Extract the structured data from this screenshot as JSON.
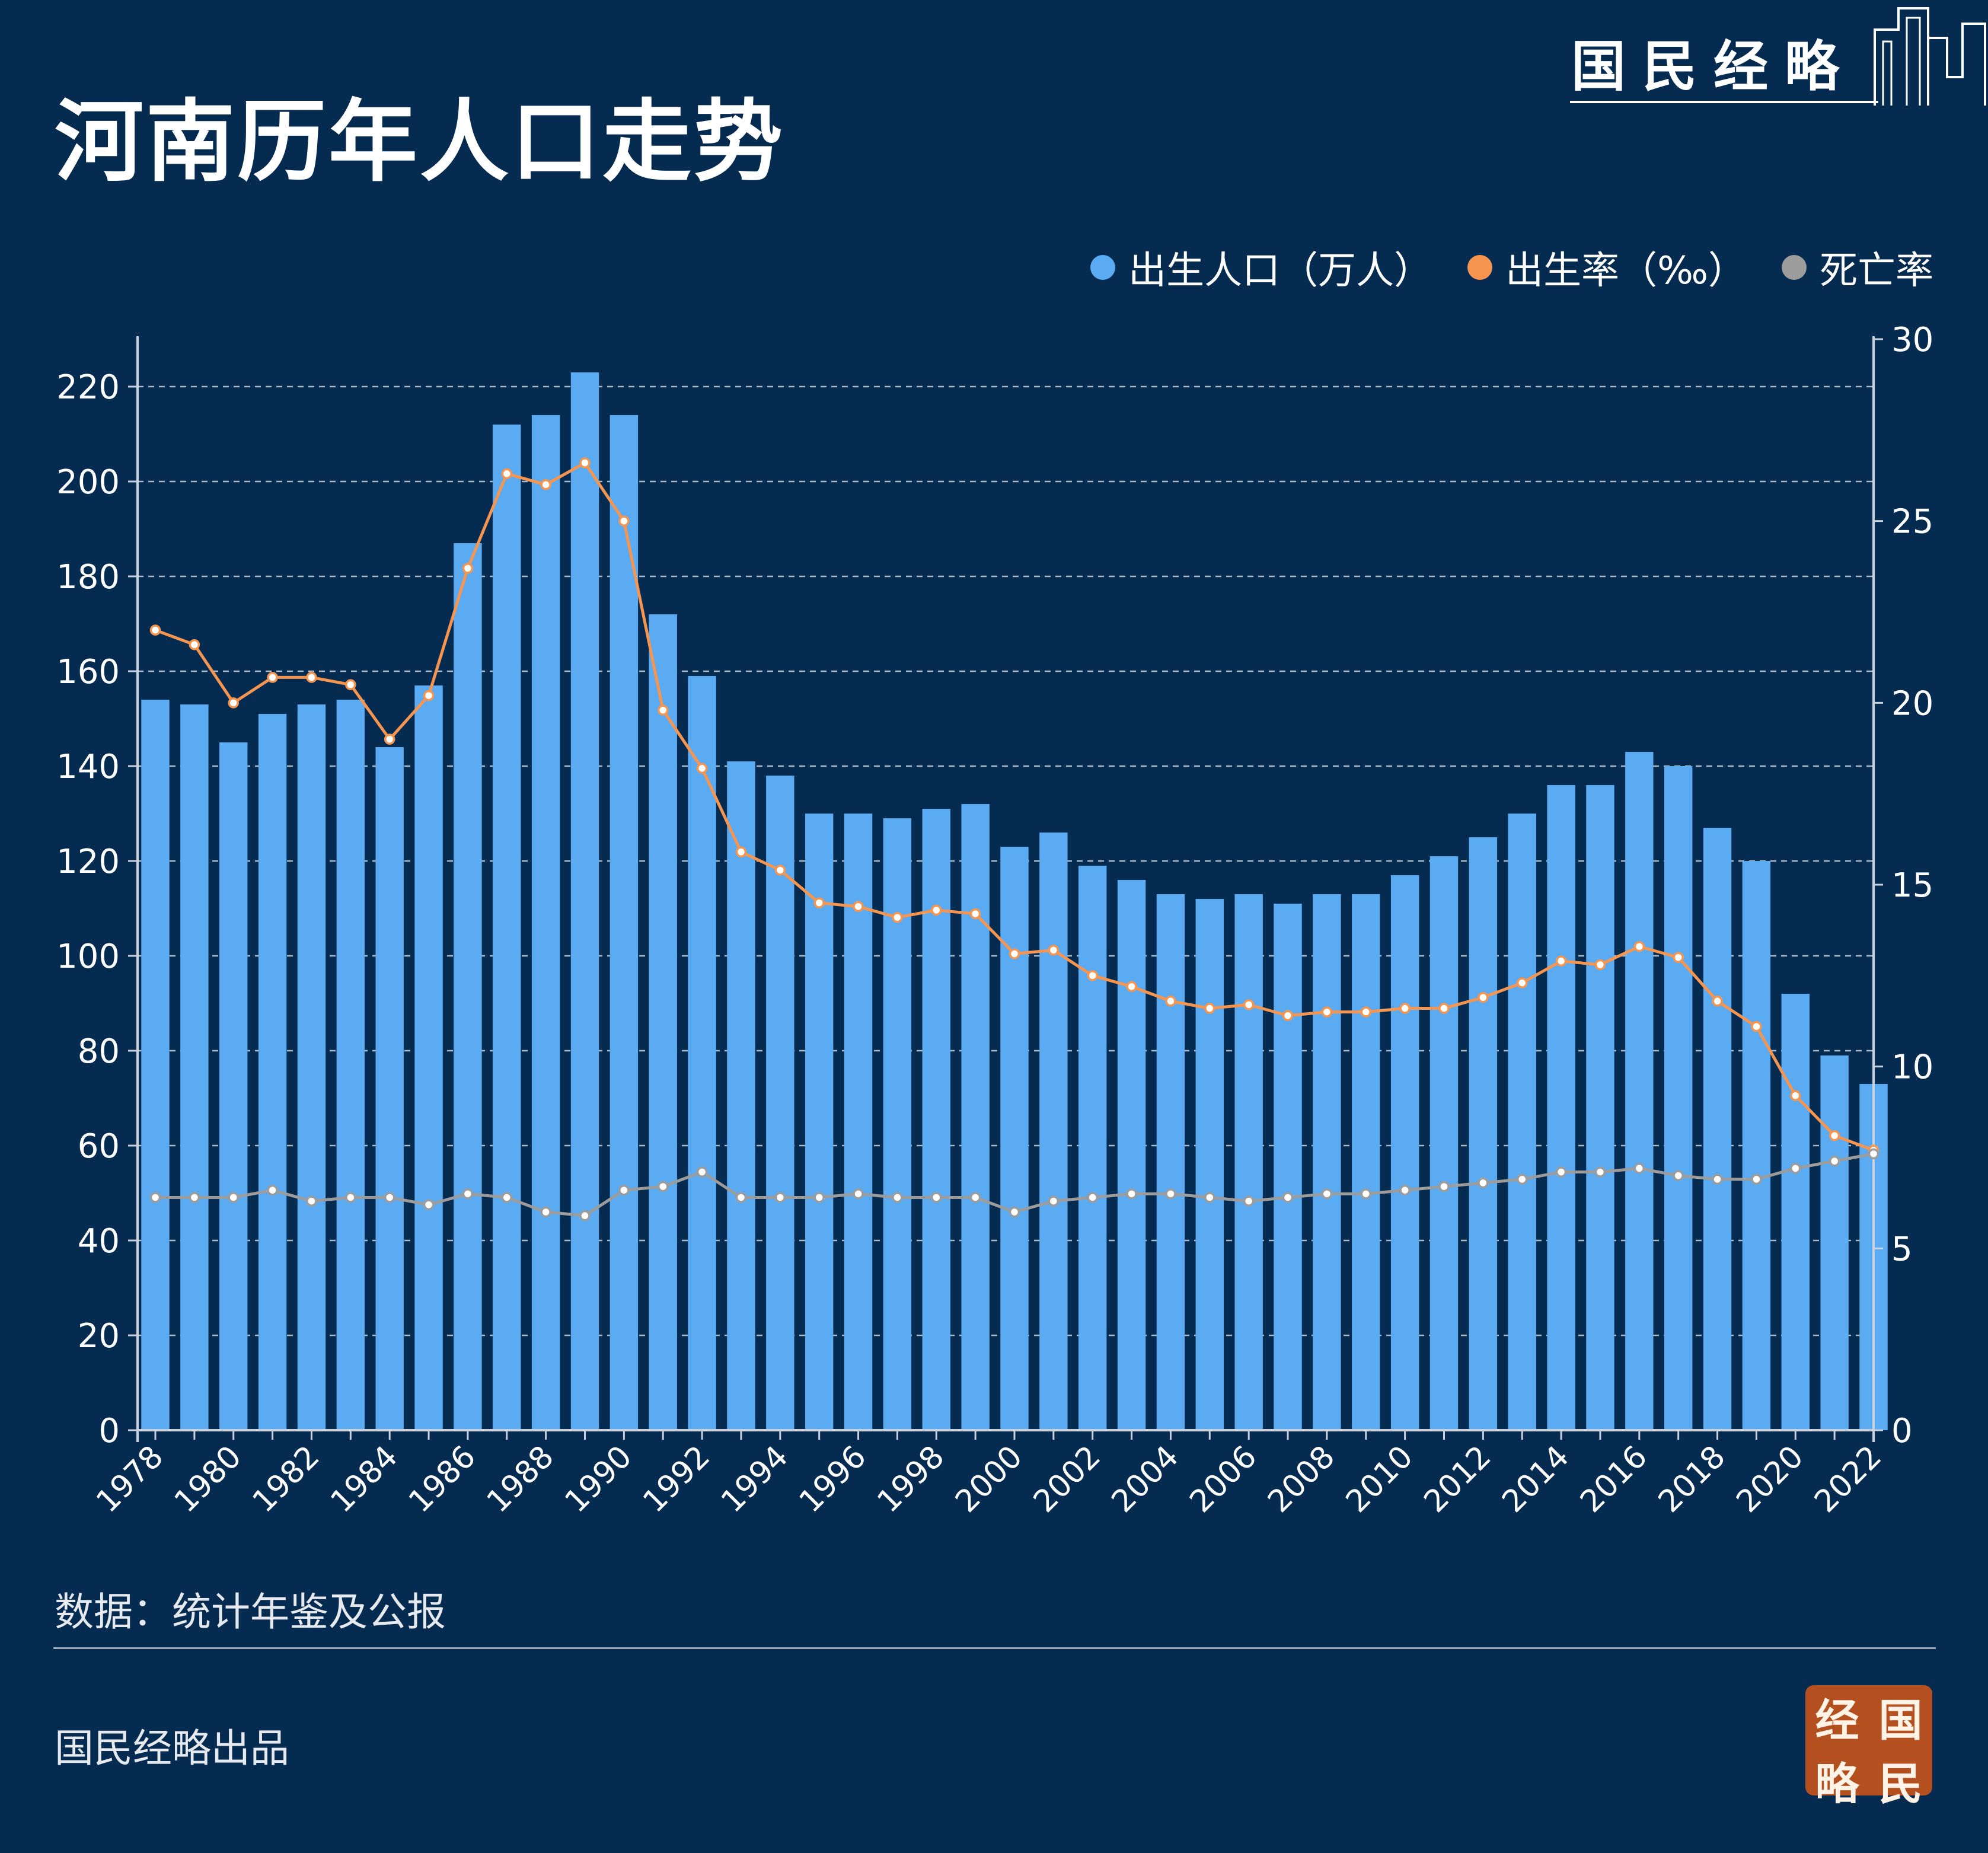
{
  "title": "河南历年人口走势",
  "brand": "国民经略",
  "legend": [
    {
      "label": "出生人口（万人）",
      "color": "#5aabf2"
    },
    {
      "label": "出生率（‰）",
      "color": "#f5954f"
    },
    {
      "label": "死亡率",
      "color": "#9c9c9c"
    }
  ],
  "source": "数据：统计年鉴及公报",
  "credit": "国民经略出品",
  "seal": [
    "经",
    "国",
    "略",
    "民"
  ],
  "chart_data": {
    "type": "bar",
    "years": [
      1978,
      1979,
      1980,
      1981,
      1982,
      1983,
      1984,
      1985,
      1986,
      1987,
      1988,
      1989,
      1990,
      1991,
      1992,
      1993,
      1994,
      1995,
      1996,
      1997,
      1998,
      1999,
      2000,
      2001,
      2002,
      2003,
      2004,
      2005,
      2006,
      2007,
      2008,
      2009,
      2010,
      2011,
      2012,
      2013,
      2014,
      2015,
      2016,
      2017,
      2018,
      2019,
      2020,
      2021,
      2022
    ],
    "x_tick_labels": [
      "1978",
      "1980",
      "1982",
      "1984",
      "1986",
      "1988",
      "1990",
      "1992",
      "1994",
      "1996",
      "1998",
      "2000",
      "2002",
      "2004",
      "2006",
      "2008",
      "2010",
      "2012",
      "2014",
      "2016",
      "2018",
      "2020",
      "2022"
    ],
    "series": [
      {
        "name": "出生人口（万人）",
        "kind": "bar",
        "axis": "left",
        "color": "#5aabf2",
        "values": [
          154,
          153,
          145,
          151,
          153,
          154,
          144,
          157,
          187,
          212,
          214,
          223,
          214,
          172,
          159,
          141,
          138,
          130,
          130,
          129,
          131,
          132,
          123,
          126,
          119,
          116,
          113,
          112,
          113,
          111,
          113,
          113,
          117,
          121,
          125,
          130,
          136,
          136,
          143,
          140,
          127,
          120,
          92,
          79,
          73
        ]
      },
      {
        "name": "出生率（‰）",
        "kind": "line",
        "axis": "right",
        "color": "#f5954f",
        "values": [
          22.0,
          21.6,
          20.0,
          20.7,
          20.7,
          20.5,
          19.0,
          20.2,
          23.7,
          26.3,
          26.0,
          26.6,
          25.0,
          19.8,
          18.2,
          15.9,
          15.4,
          14.5,
          14.4,
          14.1,
          14.3,
          14.2,
          13.1,
          13.2,
          12.5,
          12.2,
          11.8,
          11.6,
          11.7,
          11.4,
          11.5,
          11.5,
          11.6,
          11.6,
          11.9,
          12.3,
          12.9,
          12.8,
          13.3,
          13.0,
          11.8,
          11.1,
          9.2,
          8.1,
          7.7
        ]
      },
      {
        "name": "死亡率",
        "kind": "line",
        "axis": "right",
        "color": "#9c9c9c",
        "values": [
          6.4,
          6.4,
          6.4,
          6.6,
          6.3,
          6.4,
          6.4,
          6.2,
          6.5,
          6.4,
          6.0,
          5.9,
          6.6,
          6.7,
          7.1,
          6.4,
          6.4,
          6.4,
          6.5,
          6.4,
          6.4,
          6.4,
          6.0,
          6.3,
          6.4,
          6.5,
          6.5,
          6.4,
          6.3,
          6.4,
          6.5,
          6.5,
          6.6,
          6.7,
          6.8,
          6.9,
          7.1,
          7.1,
          7.2,
          7.0,
          6.9,
          6.9,
          7.2,
          7.4,
          7.6
        ]
      }
    ],
    "left_axis": {
      "ylim": [
        0,
        230
      ],
      "ticks": [
        0,
        20,
        40,
        60,
        80,
        100,
        120,
        140,
        160,
        180,
        200,
        220
      ]
    },
    "right_axis": {
      "ylim": [
        0,
        30
      ],
      "ticks": [
        0,
        5,
        10,
        15,
        20,
        25,
        30
      ]
    },
    "grid": "dashed-horizontal",
    "legend_position": "top-right"
  }
}
